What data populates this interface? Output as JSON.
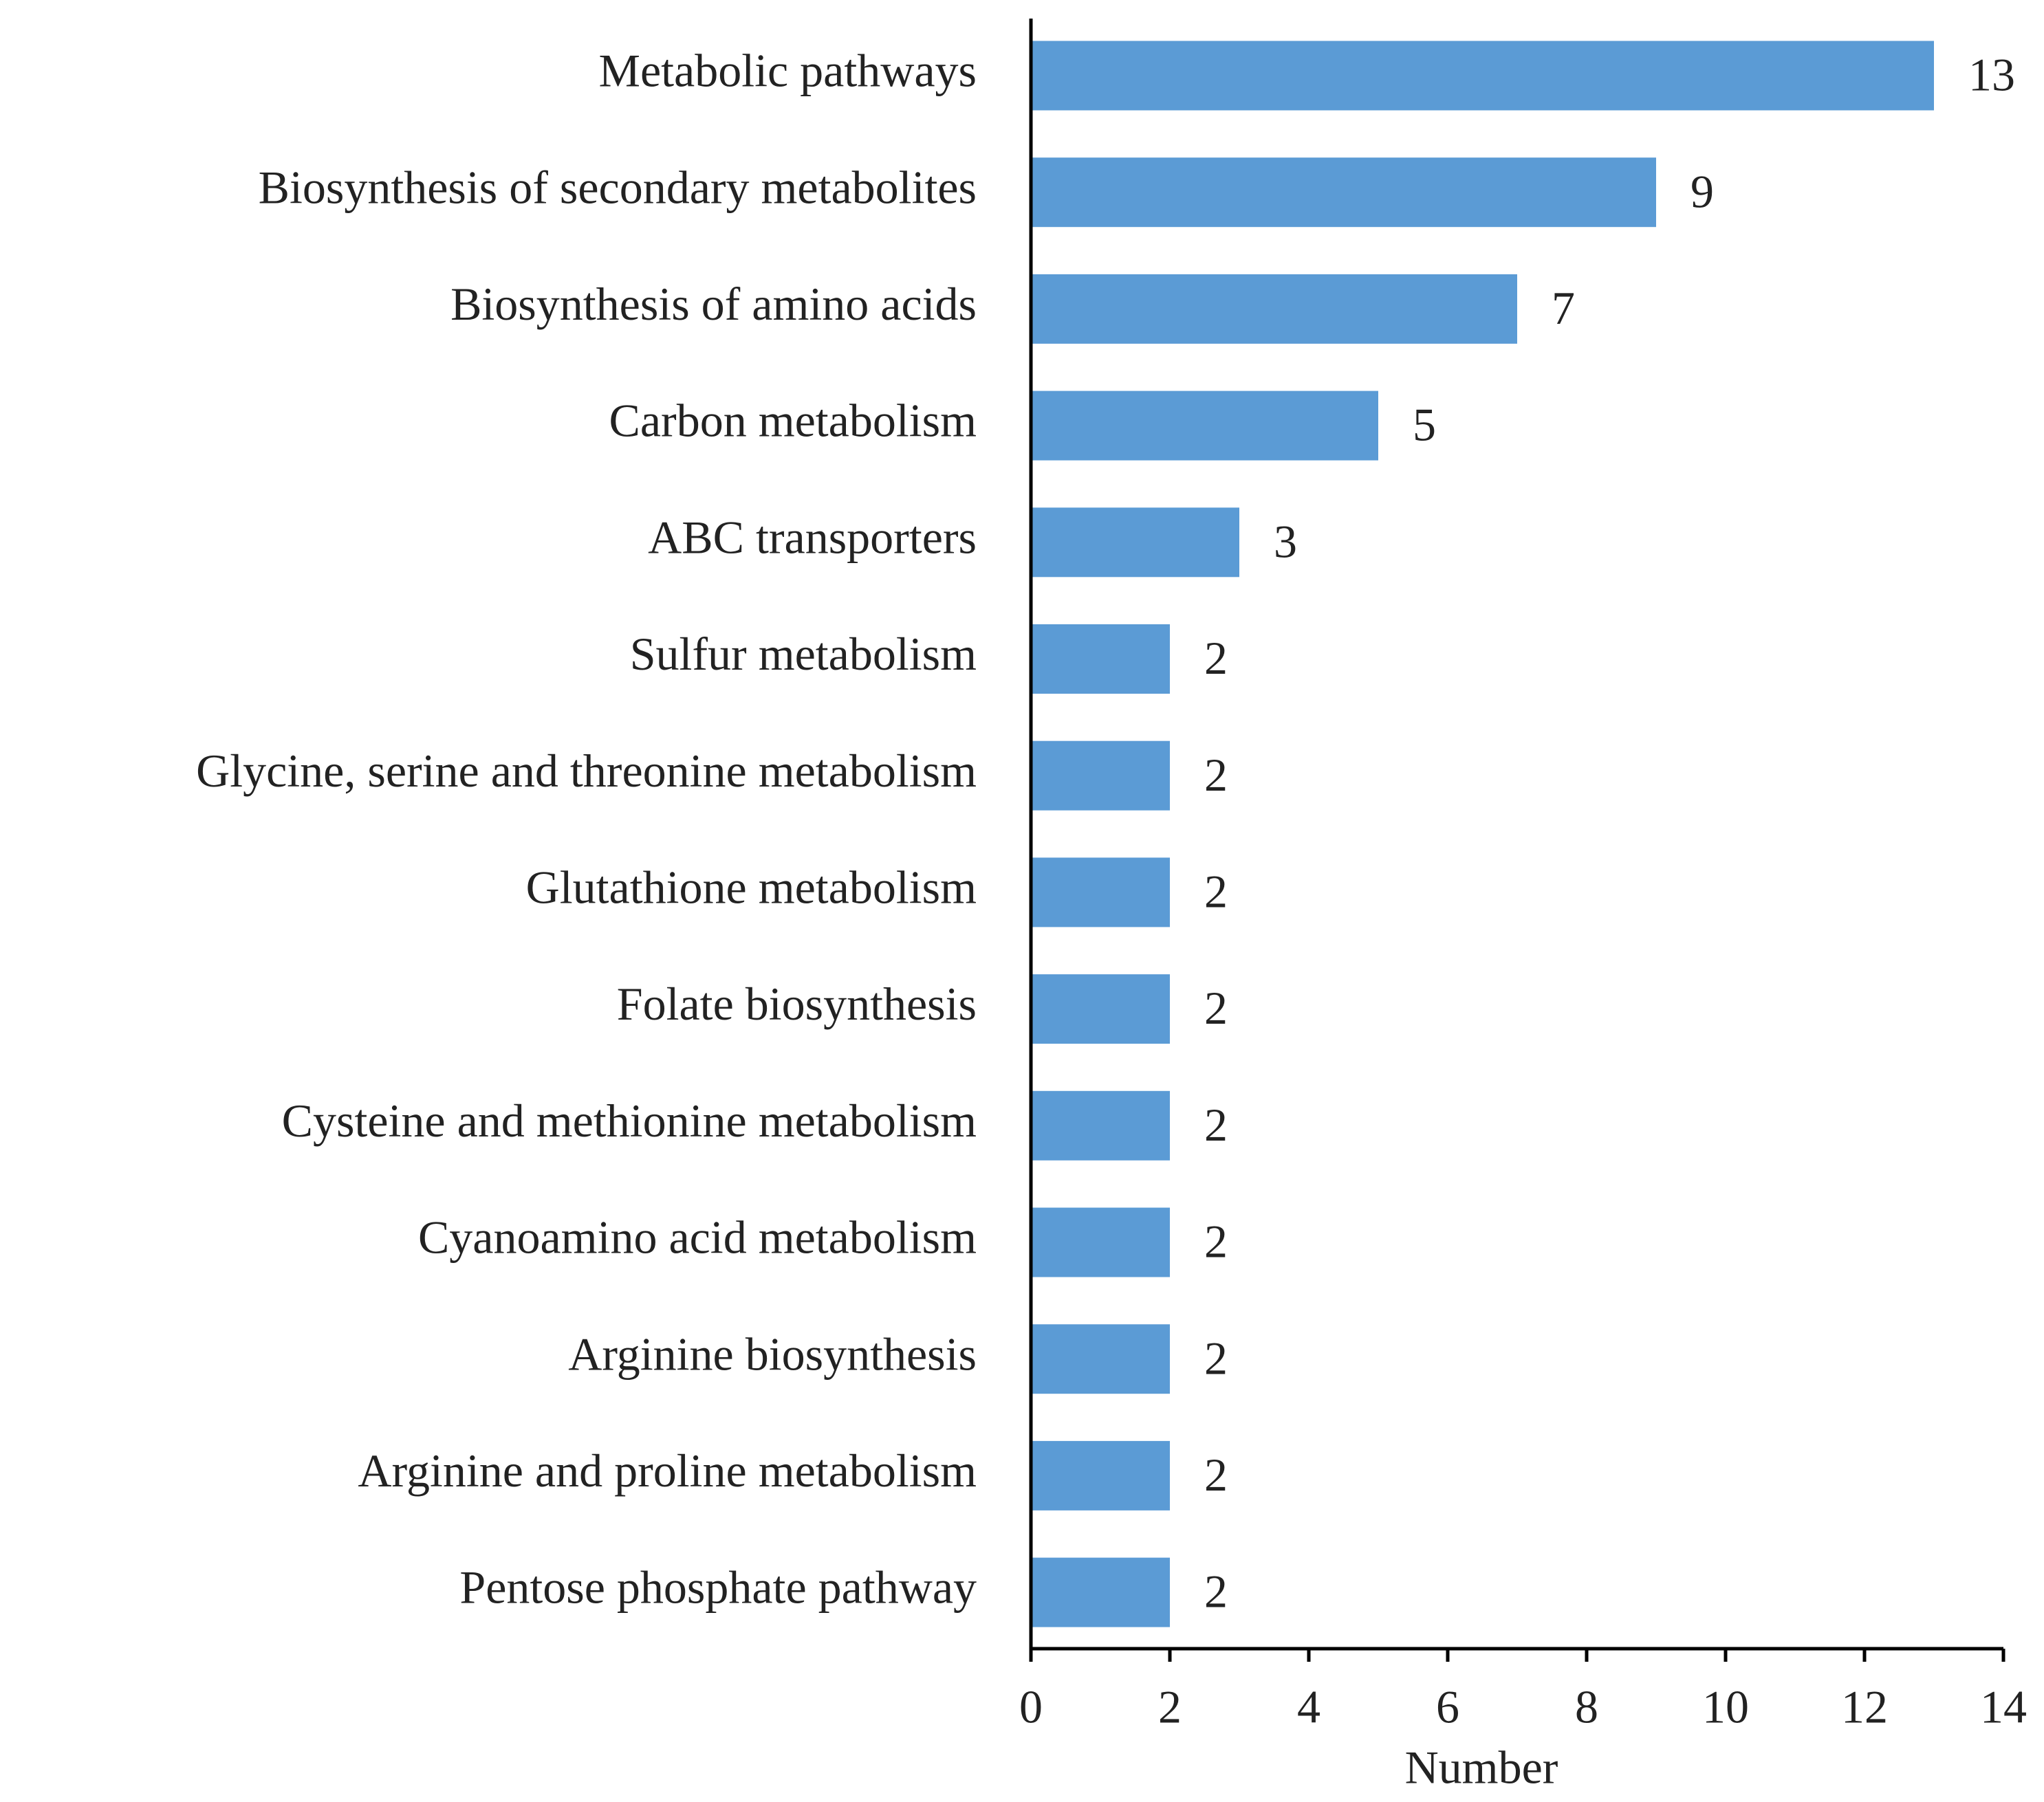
{
  "chart_data": {
    "type": "hbar",
    "categories": [
      "Metabolic pathways",
      "Biosynthesis of secondary metabolites",
      "Biosynthesis of amino acids",
      "Carbon metabolism",
      "ABC transporters",
      "Sulfur metabolism",
      "Glycine, serine and threonine metabolism",
      "Glutathione metabolism",
      "Folate biosynthesis",
      "Cysteine and methionine metabolism",
      "Cyanoamino acid metabolism",
      "Arginine biosynthesis",
      "Arginine and proline metabolism",
      "Pentose phosphate pathway"
    ],
    "values": [
      13,
      9,
      7,
      5,
      3,
      2,
      2,
      2,
      2,
      2,
      2,
      2,
      2,
      2
    ],
    "color": "#5b9bd5",
    "x_label": "Number",
    "xlim": [
      0,
      14
    ],
    "xticks": [
      0,
      2,
      4,
      6,
      8,
      10,
      12,
      14
    ],
    "grid": false
  }
}
